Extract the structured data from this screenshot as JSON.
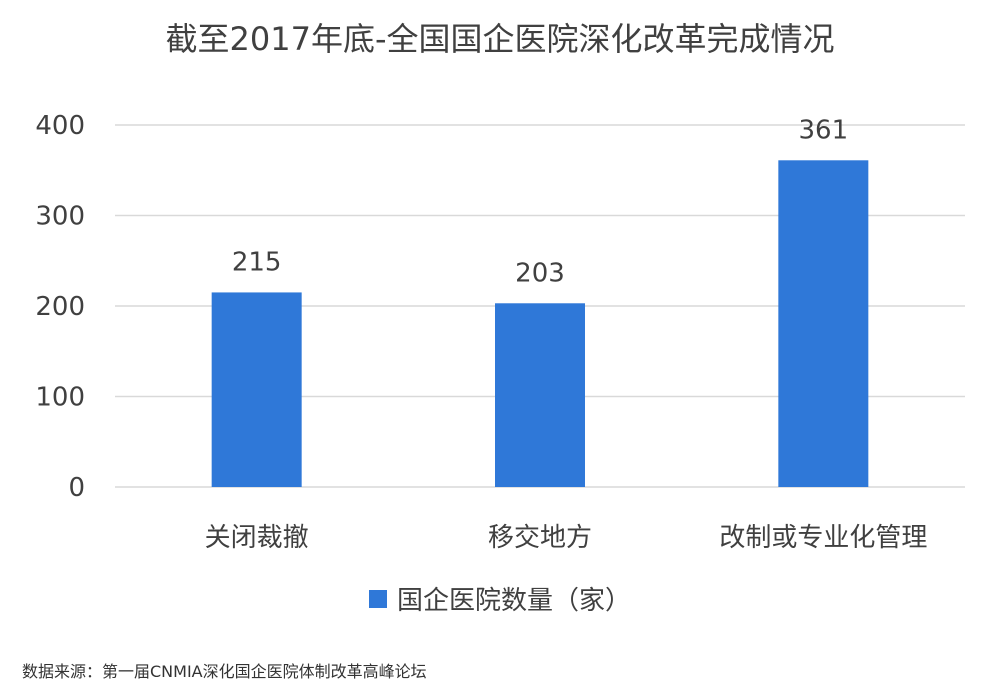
{
  "chart_data": {
    "type": "bar",
    "title": "截至2017年底-全国国企医院深化改革完成情况",
    "categories": [
      "关闭裁撤",
      "移交地方",
      "改制或专业化管理"
    ],
    "series": [
      {
        "name": "国企医院数量（家）",
        "values": [
          215,
          203,
          361
        ],
        "color": "#2f78d8"
      }
    ],
    "ylim": [
      0,
      400
    ],
    "yticks": [
      0,
      100,
      200,
      300,
      400
    ],
    "grid": true,
    "legend_position": "bottom",
    "source": "数据来源：第一届CNMIA深化国企医院体制改革高峰论坛"
  }
}
